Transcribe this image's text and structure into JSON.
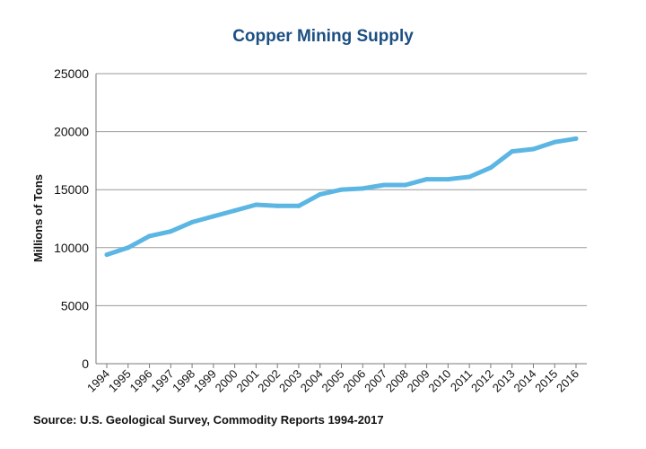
{
  "chart_data": {
    "type": "line",
    "title": "Copper Mining Supply",
    "ylabel": "Millions of Tons",
    "xlabel": "",
    "ylim": [
      0,
      25000
    ],
    "yticks": [
      "0",
      "5000",
      "10000",
      "15000",
      "20000",
      "25000"
    ],
    "grid": true,
    "legend": "none",
    "line_color": "#5bb6e4",
    "categories": [
      "1994",
      "1995",
      "1996",
      "1997",
      "1998",
      "1999",
      "2000",
      "2001",
      "2002",
      "2003",
      "2004",
      "2005",
      "2006",
      "2007",
      "2008",
      "2009",
      "2010",
      "2011",
      "2012",
      "2013",
      "2014",
      "2015",
      "2016"
    ],
    "values": [
      9400,
      10000,
      11000,
      11400,
      12200,
      12700,
      13200,
      13700,
      13600,
      13600,
      14600,
      15000,
      15100,
      15400,
      15400,
      15900,
      15900,
      16100,
      16900,
      18300,
      18500,
      19100,
      19400
    ],
    "source": "Source: U.S. Geological Survey, Commodity Reports 1994-2017"
  }
}
